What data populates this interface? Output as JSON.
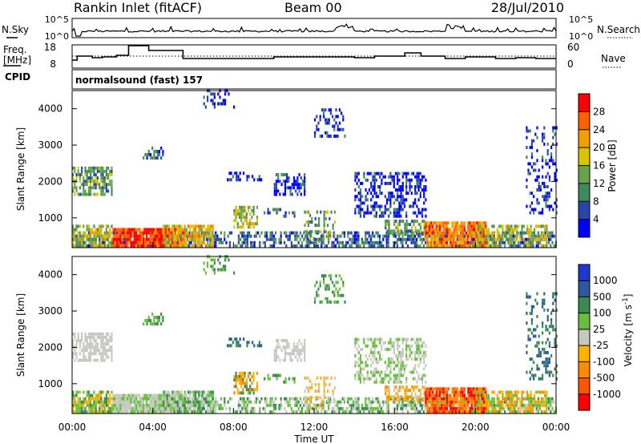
{
  "header": {
    "station": "Rankin Inlet (fitACF)",
    "beam": "Beam 00",
    "date": "28/Jul/2010"
  },
  "noise_panel": {
    "left_label": "N.Sky",
    "right_label": "N.Search",
    "left_ticks": [
      "10^5",
      "10^0"
    ],
    "right_ticks": [
      "10^5",
      "10^0"
    ]
  },
  "freq_panel": {
    "left_label_line1": "Freq.",
    "left_label_line2": "[MHz]",
    "right_label": "Nave",
    "left_ticks": [
      "18",
      "8"
    ],
    "right_ticks": [
      "60",
      "0"
    ]
  },
  "cpid": {
    "label": "CPID",
    "value": "normalsound (fast) 157"
  },
  "colors": {
    "power_scale": [
      "#0000ff",
      "#2c46a8",
      "#3f8a5c",
      "#6aa24a",
      "#d8c400",
      "#f2a000",
      "#ff6000",
      "#ff0000"
    ],
    "velocity_scale": [
      "#ff0000",
      "#ff5500",
      "#ff8c00",
      "#ffb300",
      "#c8c8c0",
      "#66c03c",
      "#3a8a52",
      "#2a5aa0",
      "#1c3ad0"
    ]
  },
  "chart_data": [
    {
      "type": "heatmap",
      "title": "Power [dB]",
      "xlabel": "",
      "ylabel": "Slant Range [km]",
      "y_ticks": [
        "1000",
        "2000",
        "3000",
        "4000"
      ],
      "ylim": [
        180,
        4500
      ],
      "x_ticks": [],
      "xlim_hours": [
        0,
        24
      ],
      "colorbar": {
        "label": "Power [dB]",
        "ticks": [
          "4",
          "8",
          "12",
          "16",
          "20",
          "24",
          "28"
        ],
        "range": [
          0,
          32
        ]
      }
    },
    {
      "type": "heatmap",
      "title": "Velocity [m s-1]",
      "xlabel": "Time UT",
      "ylabel": "Slant Range [km]",
      "y_ticks": [
        "1000",
        "2000",
        "3000",
        "4000"
      ],
      "ylim": [
        180,
        4500
      ],
      "x_ticks": [
        "00:00",
        "04:00",
        "08:00",
        "12:00",
        "16:00",
        "20:00",
        "00:00"
      ],
      "xlim_hours": [
        0,
        24
      ],
      "colorbar": {
        "label_main": "Velocity [m s",
        "label_sup": "-1",
        "label_end": "]",
        "ticks": [
          "1000",
          "500",
          "100",
          "25",
          "-25",
          "-100",
          "-500",
          "-1000"
        ]
      }
    }
  ]
}
